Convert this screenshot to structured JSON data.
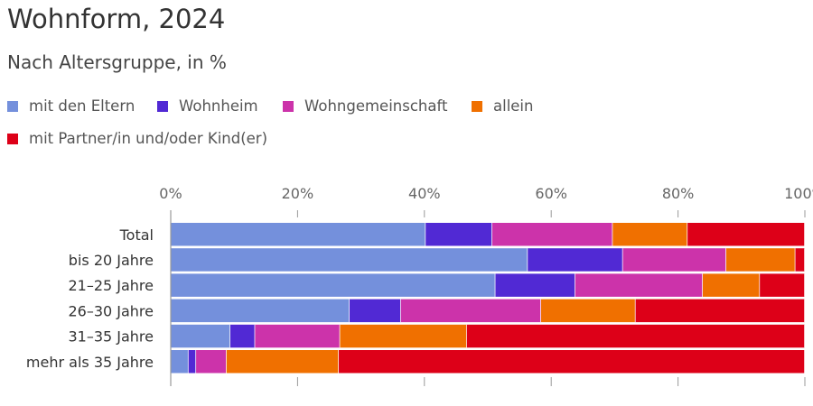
{
  "title": "Wohnform, 2024",
  "subtitle": "Nach Altersgruppe, in %",
  "chart_data": {
    "type": "bar",
    "orientation": "horizontal",
    "stacked": true,
    "categories": [
      "Total",
      "bis 20 Jahre",
      "21–25 Jahre",
      "26–30 Jahre",
      "31–35 Jahre",
      "mehr als 35 Jahre"
    ],
    "series": [
      {
        "name": "mit den Eltern",
        "color": "#7490dc",
        "values": [
          40.2,
          56.3,
          51.2,
          28.2,
          9.4,
          2.8
        ]
      },
      {
        "name": "Wohnheim",
        "color": "#5129d4",
        "values": [
          10.5,
          15.0,
          12.6,
          8.1,
          3.9,
          1.2
        ]
      },
      {
        "name": "Wohngemeinschaft",
        "color": "#cc33aa",
        "values": [
          19.0,
          16.3,
          20.1,
          22.1,
          13.4,
          4.8
        ]
      },
      {
        "name": "allein",
        "color": "#f07000",
        "values": [
          11.8,
          10.9,
          9.0,
          14.9,
          20.0,
          17.7
        ]
      },
      {
        "name": "mit Partner/in und/oder Kind(er)",
        "color": "#dd0018",
        "values": [
          18.5,
          1.5,
          7.1,
          26.7,
          53.3,
          73.5
        ]
      }
    ],
    "xlim": [
      0,
      100
    ],
    "xticks": [
      "0%",
      "20%",
      "40%",
      "60%",
      "80%",
      "100%"
    ],
    "xlabel": "",
    "ylabel": ""
  }
}
